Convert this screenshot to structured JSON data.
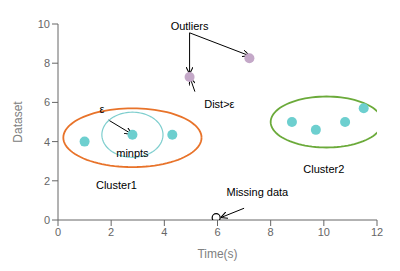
{
  "chart_data": {
    "type": "scatter",
    "xlabel": "Time(s)",
    "ylabel": "Dataset",
    "xlim": [
      0,
      12
    ],
    "ylim": [
      0,
      10
    ],
    "xticks": [
      0,
      2,
      4,
      6,
      8,
      10,
      12
    ],
    "yticks": [
      0,
      2,
      4,
      6,
      8,
      10
    ],
    "series": [
      {
        "color": "#6DCFCF",
        "x": [
          1.0,
          2.8,
          4.3
        ],
        "values": [
          4.0,
          4.35,
          4.35
        ]
      },
      {
        "color": "#6DCFCF",
        "x": [
          8.8,
          9.7,
          10.8,
          11.5
        ],
        "values": [
          5.0,
          4.6,
          5.0,
          5.7
        ]
      },
      {
        "color": "#C4A8C8",
        "x": [
          4.95,
          7.2
        ],
        "values": [
          7.3,
          8.25
        ]
      },
      {
        "color": "#000000",
        "marker": "open",
        "x": [
          5.95
        ],
        "values": [
          0.12
        ]
      }
    ],
    "shapes": [
      {
        "type": "ellipse",
        "center": [
          2.8,
          4.2
        ],
        "width": 5.2,
        "height": 3.0,
        "color": "#E8732A"
      },
      {
        "type": "ellipse",
        "center": [
          10.1,
          5.0
        ],
        "width": 4.2,
        "height": 2.6,
        "color": "#6BAA3A"
      },
      {
        "type": "circle",
        "center": [
          2.8,
          4.35
        ],
        "radius": 1.15,
        "color": "#7ECECE"
      }
    ],
    "annotations": [
      {
        "text": "Outliers",
        "x": 4.95,
        "y": 9.55,
        "position": "above",
        "arrows": [
          {
            "from": [
              4.95,
              9.55
            ],
            "to": [
              4.95,
              7.45
            ]
          },
          {
            "from": [
              4.95,
              9.55
            ],
            "to": [
              7.2,
              8.38
            ]
          }
        ]
      },
      {
        "text": "Dist>ε",
        "x": 5.5,
        "y": 6.25,
        "position": "below right",
        "arrows": [
          {
            "from": [
              5.15,
              6.55
            ],
            "to": [
              4.97,
              7.25
            ]
          }
        ]
      },
      {
        "text": "ε",
        "x": 1.75,
        "y": 5.3,
        "position": "above left",
        "arrows": [
          {
            "from": [
              1.9,
              5.1
            ],
            "to": [
              2.78,
              4.38
            ]
          }
        ]
      },
      {
        "text": "minpts",
        "x": 2.8,
        "y": 3.75,
        "position": "below",
        "arrows": []
      },
      {
        "text": "Cluster1",
        "x": 2.2,
        "y": 2.1,
        "position": "below",
        "arrows": []
      },
      {
        "text": "Cluster2",
        "x": 10.0,
        "y": 2.9,
        "position": "below",
        "arrows": []
      },
      {
        "text": "Missing data",
        "x": 7.5,
        "y": 1.05,
        "position": "above",
        "arrows": [
          {
            "from": [
              7.0,
              0.6
            ],
            "to": [
              6.12,
              0.12
            ]
          }
        ]
      }
    ]
  }
}
